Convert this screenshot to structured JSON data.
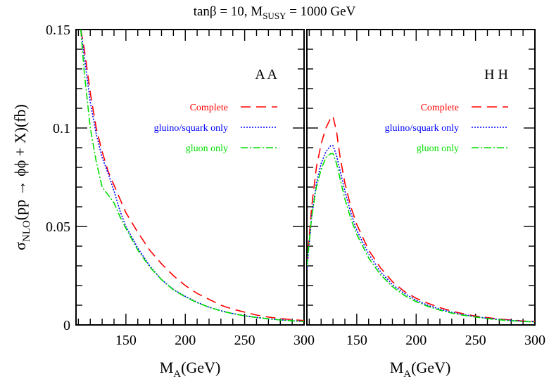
{
  "figure": {
    "title_main": "tanβ = 10, M",
    "title_sub": "SUSY",
    "title_tail": " = 1000 GeV",
    "ylabel_sigma": "σ",
    "ylabel_sub": "NLO",
    "ylabel_tail": "(pp → ϕϕ + X)(fb)",
    "xlabel_main": "M",
    "xlabel_sub": "A",
    "xlabel_tail": "(GeV)"
  },
  "colors": {
    "complete": "#ff0000",
    "gluino": "#0000ff",
    "gluon": "#00dd00",
    "axes": "#000000"
  },
  "chart_data": [
    {
      "type": "line",
      "panel_label": "A A",
      "xlabel": "M_A(GeV)",
      "ylabel": "σ_NLO(pp → ϕϕ + X)(fb)",
      "xlim": [
        108,
        300
      ],
      "ylim": [
        0,
        0.15
      ],
      "xticks": [
        150,
        200,
        250,
        300
      ],
      "xtick_labels": [
        "150",
        "200",
        "250",
        "300"
      ],
      "yticks": [
        0,
        0.05,
        0.1,
        0.15
      ],
      "ytick_labels": [
        "0",
        "0.05",
        "0.1",
        "0.15"
      ],
      "legend_position": "right",
      "series": [
        {
          "name": "Complete",
          "color_key": "complete",
          "style": "dashed",
          "x": [
            112,
            115,
            120,
            125,
            130,
            135,
            140,
            145,
            150,
            160,
            170,
            180,
            190,
            200,
            210,
            220,
            230,
            240,
            250,
            260,
            270,
            280,
            290,
            300
          ],
          "y": [
            0.15,
            0.14,
            0.118,
            0.1,
            0.088,
            0.078,
            0.071,
            0.064,
            0.057,
            0.047,
            0.038,
            0.031,
            0.025,
            0.02,
            0.016,
            0.013,
            0.01,
            0.008,
            0.0065,
            0.005,
            0.004,
            0.0032,
            0.0027,
            0.0022
          ]
        },
        {
          "name": "gluino/squark only",
          "color_key": "gluino",
          "style": "dotted",
          "x": [
            112,
            115,
            120,
            125,
            130,
            135,
            140,
            145,
            150,
            160,
            170,
            180,
            190,
            200,
            210,
            220,
            230,
            240,
            250,
            260,
            270,
            280,
            290,
            300
          ],
          "y": [
            0.15,
            0.136,
            0.113,
            0.097,
            0.085,
            0.077,
            0.068,
            0.058,
            0.05,
            0.039,
            0.03,
            0.023,
            0.018,
            0.0145,
            0.0115,
            0.009,
            0.0072,
            0.0058,
            0.0047,
            0.0038,
            0.0031,
            0.0026,
            0.0021,
            0.0018
          ]
        },
        {
          "name": "gluon only",
          "color_key": "gluon",
          "style": "dashdot",
          "x": [
            112,
            115,
            120,
            125,
            130,
            135,
            140,
            145,
            150,
            160,
            170,
            180,
            190,
            200,
            210,
            220,
            230,
            240,
            250,
            260,
            270,
            280,
            290,
            300
          ],
          "y": [
            0.15,
            0.128,
            0.1,
            0.083,
            0.07,
            0.066,
            0.062,
            0.055,
            0.049,
            0.038,
            0.0295,
            0.023,
            0.0178,
            0.0142,
            0.0113,
            0.009,
            0.0071,
            0.0057,
            0.0046,
            0.0038,
            0.0031,
            0.0025,
            0.0021,
            0.0018
          ]
        }
      ]
    },
    {
      "type": "line",
      "panel_label": "H H",
      "xlabel": "M_A(GeV)",
      "xlim": [
        108,
        300
      ],
      "ylim": [
        0,
        0.15
      ],
      "xticks": [
        150,
        200,
        250,
        300
      ],
      "xtick_labels": [
        "150",
        "200",
        "250",
        "300"
      ],
      "yticks": [
        0,
        0.05,
        0.1,
        0.15
      ],
      "legend_position": "right",
      "series": [
        {
          "name": "Complete",
          "color_key": "complete",
          "style": "dashed",
          "x": [
            108,
            112,
            116,
            120,
            124,
            128,
            130,
            133,
            136,
            140,
            145,
            150,
            160,
            170,
            180,
            190,
            200,
            210,
            220,
            230,
            240,
            250,
            260,
            270,
            280,
            290,
            300
          ],
          "y": [
            0.03,
            0.06,
            0.08,
            0.092,
            0.1,
            0.105,
            0.106,
            0.098,
            0.085,
            0.072,
            0.06,
            0.051,
            0.038,
            0.029,
            0.022,
            0.017,
            0.0135,
            0.011,
            0.0088,
            0.007,
            0.0056,
            0.0045,
            0.0037,
            0.003,
            0.0025,
            0.002,
            0.0017
          ]
        },
        {
          "name": "gluino/squark only",
          "color_key": "gluino",
          "style": "dotted",
          "x": [
            108,
            112,
            116,
            120,
            124,
            128,
            130,
            133,
            136,
            140,
            145,
            150,
            160,
            170,
            180,
            190,
            200,
            210,
            220,
            230,
            240,
            250,
            260,
            270,
            280,
            290,
            300
          ],
          "y": [
            0.028,
            0.055,
            0.072,
            0.082,
            0.088,
            0.091,
            0.091,
            0.086,
            0.078,
            0.068,
            0.057,
            0.048,
            0.036,
            0.027,
            0.0205,
            0.016,
            0.0125,
            0.01,
            0.008,
            0.0064,
            0.0052,
            0.0042,
            0.0034,
            0.0028,
            0.0023,
            0.0019,
            0.0016
          ]
        },
        {
          "name": "gluon only",
          "color_key": "gluon",
          "style": "dashdot",
          "x": [
            108,
            112,
            116,
            120,
            124,
            128,
            130,
            133,
            136,
            140,
            145,
            150,
            160,
            170,
            180,
            190,
            200,
            210,
            220,
            230,
            240,
            250,
            260,
            270,
            280,
            290,
            300
          ],
          "y": [
            0.03,
            0.055,
            0.07,
            0.079,
            0.085,
            0.087,
            0.087,
            0.082,
            0.074,
            0.064,
            0.054,
            0.046,
            0.034,
            0.0255,
            0.0195,
            0.015,
            0.0118,
            0.0094,
            0.0075,
            0.006,
            0.0049,
            0.004,
            0.0032,
            0.0026,
            0.0021,
            0.0018,
            0.0015
          ]
        }
      ]
    }
  ]
}
